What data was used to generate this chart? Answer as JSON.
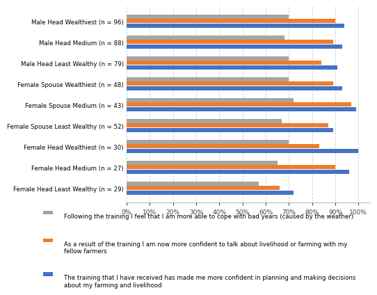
{
  "categories": [
    "Male Head Wealthiest (n = 96)",
    "Male Head Medium (n = 88)",
    "Male Head Least Wealthy (n = 79)",
    "Female Spouse Wealthiest (n = 48)",
    "Female Spouse Medium (n = 43)",
    "Female Spouse Least Wealthy (n = 52)",
    "Female Head Wealthiest (n = 30)",
    "Female Head Medium (n = 27)",
    "Female Head Least Wealthy (n = 29)"
  ],
  "gray_values": [
    0.7,
    0.68,
    0.7,
    0.7,
    0.72,
    0.67,
    0.7,
    0.65,
    0.57
  ],
  "orange_values": [
    0.9,
    0.89,
    0.84,
    0.89,
    0.97,
    0.87,
    0.83,
    0.9,
    0.66
  ],
  "blue_values": [
    0.94,
    0.93,
    0.91,
    0.93,
    0.99,
    0.89,
    1.0,
    0.96,
    0.72
  ],
  "gray_color": "#a5a5a5",
  "orange_color": "#ed7d31",
  "blue_color": "#4472c4",
  "legend_gray": "Following the training I feel that I am more able to cope with bad years (caused by the weather)",
  "legend_orange": "As a result of the training I am now more confident to talk about livelihood or farming with my\nfellow farmers",
  "legend_blue": "The training that I have received has made me more confident in planning and making decisions\nabout my farming and livelihood",
  "xlim": [
    0,
    1.05
  ],
  "xticks": [
    0,
    0.1,
    0.2,
    0.3,
    0.4,
    0.5,
    0.6,
    0.7,
    0.8,
    0.9,
    1.0
  ],
  "xticklabels": [
    "0%",
    "10%",
    "20%",
    "30%",
    "40%",
    "50%",
    "60%",
    "70%",
    "80%",
    "90%",
    "100%"
  ],
  "background_color": "#ffffff",
  "grid_color": "#d3d3d3"
}
